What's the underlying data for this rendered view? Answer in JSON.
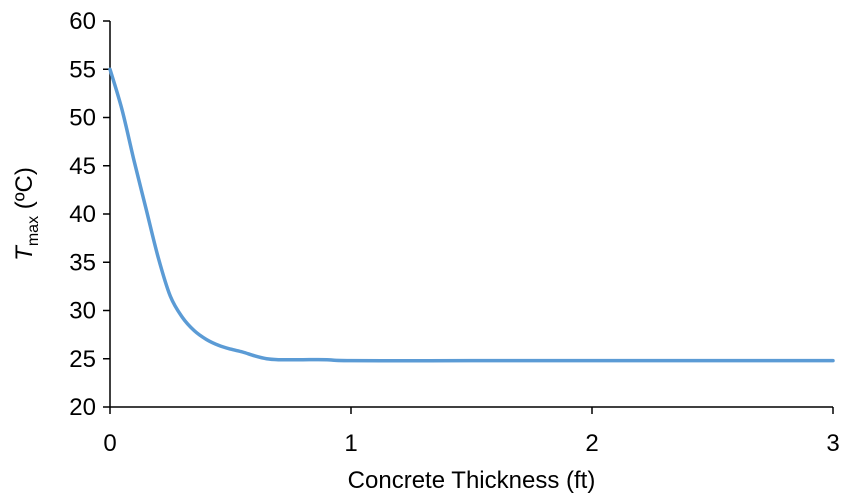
{
  "chart_data": {
    "type": "line",
    "xlabel": "Concrete Thickness (ft)",
    "ylabel": {
      "symbol": "T",
      "subscript": "max",
      "unit": " (ºC)"
    },
    "xlim": [
      0,
      3
    ],
    "ylim": [
      20,
      60
    ],
    "xticks": [
      "0",
      "1",
      "2",
      "3"
    ],
    "yticks": [
      "20",
      "25",
      "30",
      "35",
      "40",
      "45",
      "50",
      "55",
      "60"
    ],
    "grid": false,
    "legend": "none",
    "series": [
      {
        "color": "#5b9bd5",
        "x": [
          0,
          0.05,
          0.1,
          0.15,
          0.2,
          0.25,
          0.3,
          0.35,
          0.4,
          0.45,
          0.5,
          0.55,
          0.6,
          0.65,
          0.7,
          0.75,
          0.8,
          0.9,
          1.0,
          1.5,
          2.0,
          2.5,
          3.0
        ],
        "y": [
          55,
          50.8,
          45.5,
          40.5,
          35.5,
          31.5,
          29.3,
          27.9,
          27.0,
          26.4,
          26.0,
          25.7,
          25.3,
          25.0,
          24.9,
          24.9,
          24.9,
          24.9,
          24.8,
          24.8,
          24.8,
          24.8,
          24.8
        ]
      }
    ]
  }
}
